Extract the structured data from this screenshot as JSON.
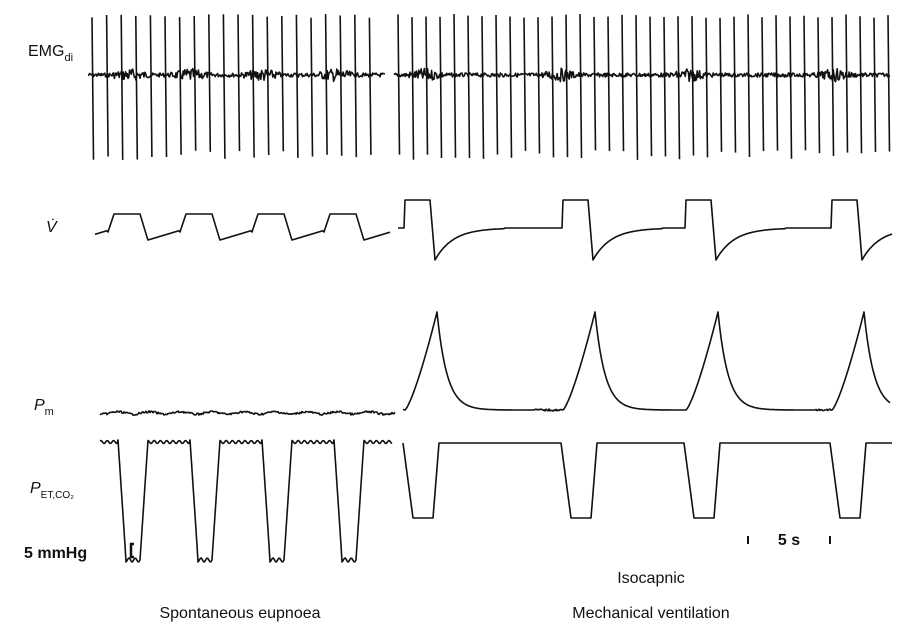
{
  "labels": {
    "emg": {
      "main": "EMG",
      "sub": "di"
    },
    "flow": "V̇",
    "pm": {
      "main": "P",
      "sub": "m"
    },
    "petco2": {
      "main": "P",
      "sub": "ET,CO₂"
    }
  },
  "scale_bars": {
    "pressure": "5 mmHg",
    "time": "5 s"
  },
  "annotations": {
    "condition": "Isocapnic"
  },
  "panels": [
    "Spontaneous eupnoea",
    "Mechanical ventilation"
  ]
}
